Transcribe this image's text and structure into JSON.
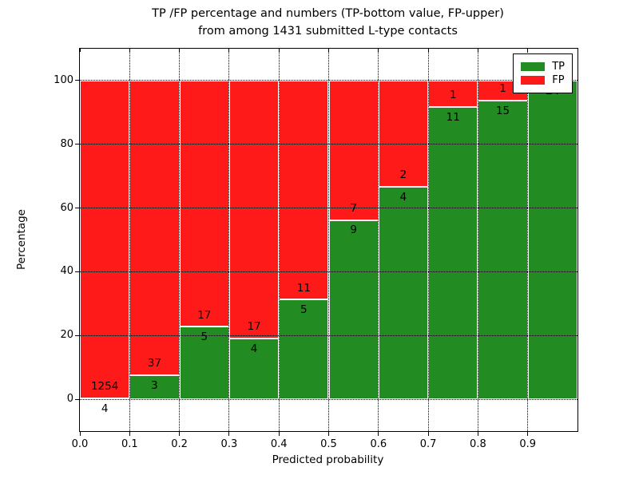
{
  "chart_data": {
    "type": "bar",
    "stacked": true,
    "title": [
      "TP /FP percentage and numbers (TP-bottom value, FP-upper)",
      "from among 1431 submitted L-type contacts"
    ],
    "xlabel": "Predicted probability",
    "ylabel": "Percentage",
    "total_contacts": 1431,
    "xlim": [
      0.0,
      1.0
    ],
    "ylim": [
      -10,
      110
    ],
    "grid": true,
    "x_tick_labels": [
      "0.0",
      "0.1",
      "0.2",
      "0.3",
      "0.4",
      "0.5",
      "0.6",
      "0.7",
      "0.8",
      "0.9"
    ],
    "x_tick_values": [
      0.0,
      0.1,
      0.2,
      0.3,
      0.4,
      0.5,
      0.6,
      0.7,
      0.8,
      0.9
    ],
    "y_tick_labels": [
      "0",
      "20",
      "40",
      "60",
      "80",
      "100"
    ],
    "y_tick_values": [
      0,
      20,
      40,
      60,
      80,
      100
    ],
    "legend": [
      {
        "label": "TP",
        "color": "#228b22"
      },
      {
        "label": "FP",
        "color": "#ff1a1a"
      }
    ],
    "legend_position": "upper right",
    "colors": {
      "tp": "#228b22",
      "fp": "#ff1a1a",
      "bar_edge": "#ffffff"
    },
    "bins": [
      {
        "x0": 0.0,
        "x1": 0.1,
        "tp": 4,
        "fp": 1254,
        "tp_pct": 0.32
      },
      {
        "x0": 0.1,
        "x1": 0.2,
        "tp": 3,
        "fp": 37,
        "tp_pct": 7.5
      },
      {
        "x0": 0.2,
        "x1": 0.3,
        "tp": 5,
        "fp": 17,
        "tp_pct": 22.73
      },
      {
        "x0": 0.3,
        "x1": 0.4,
        "tp": 4,
        "fp": 17,
        "tp_pct": 19.05
      },
      {
        "x0": 0.4,
        "x1": 0.5,
        "tp": 5,
        "fp": 11,
        "tp_pct": 31.25
      },
      {
        "x0": 0.5,
        "x1": 0.6,
        "tp": 9,
        "fp": 7,
        "tp_pct": 56.25
      },
      {
        "x0": 0.6,
        "x1": 0.7,
        "tp": 4,
        "fp": 2,
        "tp_pct": 66.67
      },
      {
        "x0": 0.7,
        "x1": 0.8,
        "tp": 11,
        "fp": 1,
        "tp_pct": 91.67
      },
      {
        "x0": 0.8,
        "x1": 0.9,
        "tp": 15,
        "fp": 1,
        "tp_pct": 93.75
      },
      {
        "x0": 0.9,
        "x1": 1.0,
        "tp": 24,
        "fp": 0,
        "tp_pct": 100.0
      }
    ]
  }
}
